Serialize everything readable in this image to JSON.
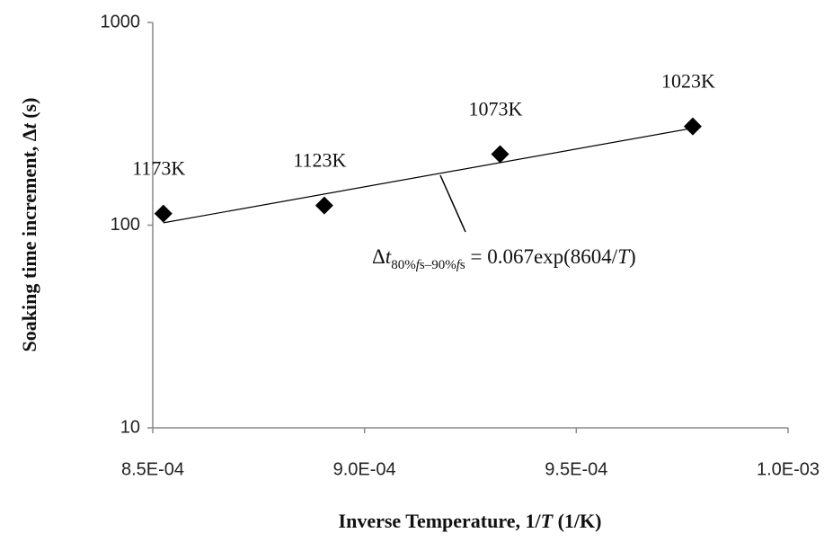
{
  "chart_data": {
    "type": "scatter",
    "x": [
      0.0008525,
      0.0008905,
      0.000932,
      0.0009775
    ],
    "values": [
      114,
      125,
      224,
      307
    ],
    "point_labels": [
      "1173K",
      "1123K",
      "1073K",
      "1023K"
    ],
    "color": "#000000",
    "log_y": true,
    "grid": false,
    "xlim": [
      0.00085,
      0.001
    ],
    "xticks": [
      {
        "value": 0.00085,
        "label": "8.5E-04"
      },
      {
        "value": 0.0009,
        "label": "9.0E-04"
      },
      {
        "value": 0.00095,
        "label": "9.5E-04"
      },
      {
        "value": 0.001,
        "label": "1.0E-03"
      }
    ],
    "ylim": [
      10,
      1000
    ],
    "yticks": [
      10,
      100,
      1000
    ],
    "trendline": {
      "x": [
        0.0008525,
        0.0009775
      ],
      "values": [
        102.7,
        301
      ]
    },
    "x_label": [
      "Inverse Temperature, 1/",
      "T",
      " (1/K)"
    ],
    "y_label": [
      "Soaking time increment, Δ",
      "t",
      " (s)"
    ],
    "annotation": [
      "Δ",
      "t",
      "80%",
      "f",
      "s–90%",
      "f",
      "s",
      " = 0.067exp(8604/",
      "T",
      ")"
    ]
  }
}
